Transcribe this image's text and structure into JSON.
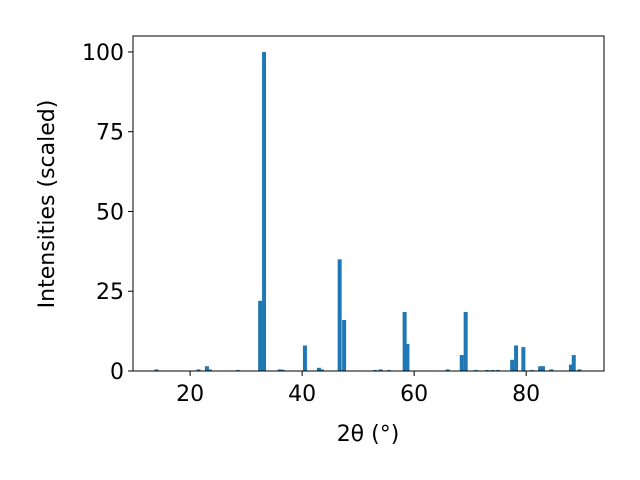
{
  "chart_data": {
    "type": "bar",
    "x_label": "2θ (°)",
    "y_label": "Intensities (scaled)",
    "x": [
      14,
      21.5,
      23,
      23.5,
      28.5,
      32.5,
      33.2,
      36,
      36.5,
      40.5,
      43,
      43.5,
      46.7,
      47.5,
      53,
      54,
      55.5,
      58.3,
      58.8,
      66,
      68.5,
      69.2,
      71,
      73,
      74,
      75,
      77.5,
      78.2,
      79.5,
      81,
      82.5,
      83,
      84.5,
      88,
      88.5,
      89.5
    ],
    "values": [
      0.5,
      0.5,
      1.5,
      0.5,
      0.3,
      22,
      100,
      0.5,
      0.4,
      8,
      1,
      0.5,
      35,
      16,
      0.3,
      0.5,
      0.3,
      18.5,
      8.5,
      0.5,
      5,
      18.5,
      0.3,
      0.3,
      0.3,
      0.3,
      3.5,
      8,
      7.5,
      0.3,
      1.5,
      1.5,
      0.5,
      2,
      5,
      0.5
    ],
    "color": "#1f77b4",
    "xlim": [
      9.8,
      93.9
    ],
    "ylim": [
      0,
      105
    ],
    "xticks": [
      20,
      40,
      60,
      80
    ],
    "yticks": [
      0,
      25,
      50,
      75,
      100
    ],
    "grid": false
  }
}
